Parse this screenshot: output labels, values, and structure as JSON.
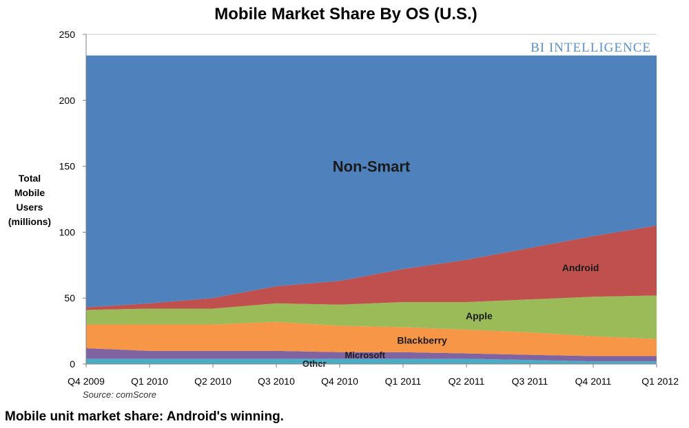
{
  "chart_data": {
    "type": "area",
    "stacked": true,
    "title": "Mobile Market Share By OS (U.S.)",
    "ylabel": [
      "Total",
      "Mobile",
      "Users",
      "(millions)"
    ],
    "xlabel": "",
    "categories": [
      "Q4 2009",
      "Q1 2010",
      "Q2 2010",
      "Q3 2010",
      "Q4 2010",
      "Q1 2011",
      "Q2 2011",
      "Q3 2011",
      "Q4 2011",
      "Q1 2012"
    ],
    "ylim": [
      0,
      250
    ],
    "yticks": [
      0,
      50,
      100,
      150,
      200,
      250
    ],
    "grid": true,
    "legend": "none (series labeled inside areas)",
    "series": [
      {
        "name": "Other",
        "color": "#4bacc6",
        "values": [
          4,
          4,
          4,
          4,
          4,
          4,
          4,
          3,
          2,
          2
        ]
      },
      {
        "name": "Microsoft",
        "color": "#8064a2",
        "values": [
          8,
          6,
          6,
          6,
          5,
          5,
          4,
          4,
          4,
          4
        ]
      },
      {
        "name": "Blackberry",
        "color": "#f79646",
        "values": [
          18,
          20,
          20,
          22,
          20,
          19,
          18,
          17,
          15,
          13
        ]
      },
      {
        "name": "Apple",
        "color": "#9bbb59",
        "values": [
          11,
          12,
          12,
          14,
          16,
          19,
          21,
          25,
          30,
          33
        ]
      },
      {
        "name": "Android",
        "color": "#c0504d",
        "values": [
          2,
          4,
          8,
          13,
          18,
          25,
          32,
          39,
          46,
          53
        ]
      },
      {
        "name": "Non-Smart",
        "color": "#4f81bd",
        "values": [
          191,
          188,
          184,
          175,
          171,
          162,
          155,
          146,
          137,
          129
        ]
      }
    ],
    "source": "Source: comScore",
    "watermark": "BI INTELLIGENCE"
  },
  "caption": "Mobile unit market share: Android's winning."
}
